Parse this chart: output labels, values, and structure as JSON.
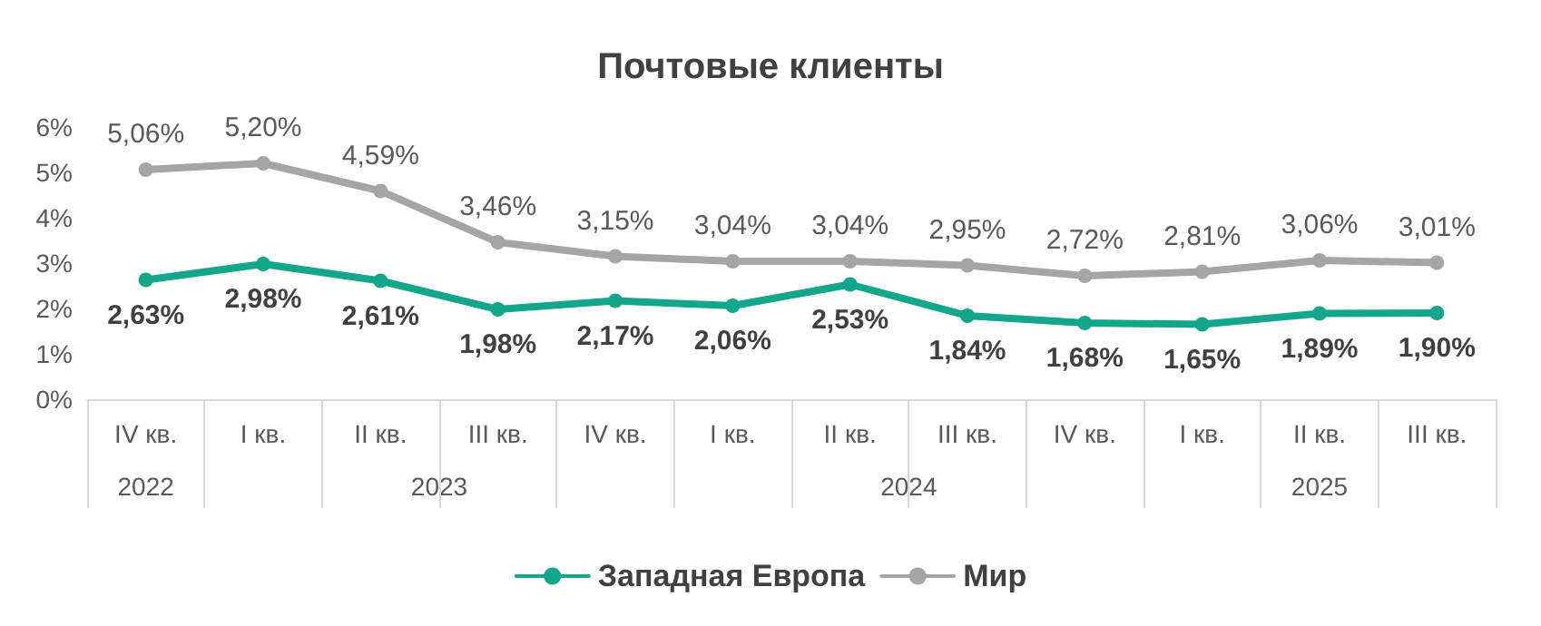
{
  "chart_data": {
    "type": "line",
    "title": "Почтовые клиенты",
    "categories": [
      "IV кв.",
      "I кв.",
      "II кв.",
      "III кв.",
      "IV кв.",
      "I кв.",
      "II кв.",
      "III кв.",
      "IV кв.",
      "I кв.",
      "II кв.",
      "III кв."
    ],
    "series": [
      {
        "name": "Западная Европа",
        "color": "#12a68b",
        "values": [
          2.63,
          2.98,
          2.61,
          1.98,
          2.17,
          2.06,
          2.53,
          1.84,
          1.68,
          1.65,
          1.89,
          1.9
        ],
        "value_labels": [
          "2,63%",
          "2,98%",
          "2,61%",
          "1,98%",
          "2,17%",
          "2,06%",
          "2,53%",
          "1,84%",
          "1,68%",
          "1,65%",
          "1,89%",
          "1,90%"
        ]
      },
      {
        "name": "Мир",
        "color": "#a5a5a5",
        "values": [
          5.06,
          5.2,
          4.59,
          3.46,
          3.15,
          3.04,
          3.04,
          2.95,
          2.72,
          2.81,
          3.06,
          3.01
        ],
        "value_labels": [
          "5,06%",
          "5,20%",
          "4,59%",
          "3,46%",
          "3,15%",
          "3,04%",
          "3,04%",
          "2,95%",
          "2,72%",
          "2,81%",
          "3,06%",
          "3,01%"
        ]
      }
    ],
    "ylim": [
      0,
      6
    ],
    "yticks": [
      {
        "value": 0,
        "label": "0%"
      },
      {
        "value": 1,
        "label": "1%"
      },
      {
        "value": 2,
        "label": "2%"
      },
      {
        "value": 3,
        "label": "3%"
      },
      {
        "value": 4,
        "label": "4%"
      },
      {
        "value": 5,
        "label": "5%"
      },
      {
        "value": 6,
        "label": "6%"
      }
    ],
    "annotations": [
      "2022",
      "2023",
      "2024",
      "2025"
    ],
    "grid": false,
    "legend": "bottom",
    "marker": "circle",
    "line_style": "solid"
  }
}
